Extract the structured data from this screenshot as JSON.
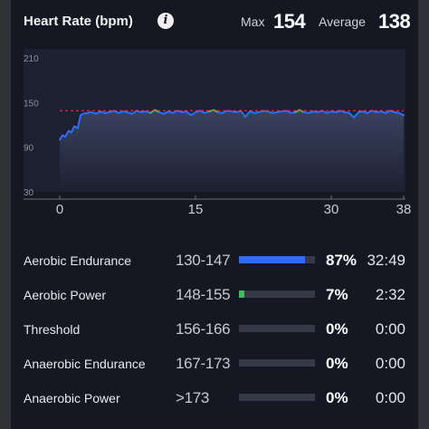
{
  "header": {
    "title": "Heart Rate (bpm)",
    "max_label": "Max",
    "max_value": "154",
    "avg_label": "Average",
    "avg_value": "138"
  },
  "chart_data": {
    "type": "line",
    "ylabel": "",
    "xlabel": "",
    "y_ticks": [
      210,
      150,
      90,
      30
    ],
    "x_ticks": [
      0,
      15,
      30,
      38
    ],
    "xlim": [
      0,
      38
    ],
    "ylim": [
      30,
      210
    ],
    "average_line": 138,
    "series": [
      {
        "color": "#2f6df6",
        "x": [
          0,
          0.3,
          0.6,
          1,
          1.3,
          1.6,
          2,
          2.3,
          2.6,
          3,
          3.5,
          4,
          4.5,
          5,
          5.5,
          6,
          6.5,
          7,
          7.5,
          8,
          8.5,
          9,
          9.5,
          10,
          10.5,
          11,
          11.5,
          12,
          12.5,
          13,
          13.5,
          14,
          14.5,
          15,
          15.5,
          16,
          16.5,
          17,
          17.5,
          18,
          18.5,
          19,
          19.5,
          20,
          20.5,
          21,
          21.5,
          22,
          22.5,
          23,
          23.5,
          24,
          24.5,
          25,
          25.5,
          26,
          26.5,
          27,
          27.5,
          28,
          28.5,
          29,
          29.5,
          30,
          30.5,
          31,
          31.5,
          32,
          32.5,
          33,
          33.5,
          34,
          34.5,
          35,
          35.5,
          36,
          36.5,
          37,
          37.5,
          38
        ],
        "values": [
          100,
          106,
          104,
          112,
          110,
          118,
          116,
          133,
          135,
          136,
          137,
          135,
          138,
          136,
          137,
          139,
          136,
          138,
          137,
          135,
          139,
          137,
          138,
          136,
          140,
          137,
          135,
          138,
          136,
          139,
          137,
          138,
          133,
          137,
          139,
          136,
          138,
          140,
          137,
          136,
          139,
          138,
          137,
          139,
          131,
          138,
          136,
          137,
          139,
          138,
          136,
          137,
          138,
          139,
          136,
          137,
          140,
          137,
          136,
          138,
          137,
          139,
          136,
          138,
          137,
          139,
          137,
          136,
          130,
          137,
          138,
          136,
          139,
          137,
          138,
          136,
          139,
          137,
          136,
          133
        ]
      },
      {
        "color": "#3fbf5a",
        "segments_above": 148
      }
    ]
  },
  "zones": [
    {
      "name": "Aerobic Endurance",
      "range": "130-147",
      "fraction": 0.87,
      "color": "#2f6df6",
      "pct": "87%",
      "time": "32:49"
    },
    {
      "name": "Aerobic Power",
      "range": "148-155",
      "fraction": 0.07,
      "color": "#3fbf5a",
      "pct": "7%",
      "time": "2:32"
    },
    {
      "name": "Threshold",
      "range": "156-166",
      "fraction": 0,
      "color": "#f0a030",
      "pct": "0%",
      "time": "0:00"
    },
    {
      "name": "Anaerobic Endurance",
      "range": "167-173",
      "fraction": 0,
      "color": "#f06030",
      "pct": "0%",
      "time": "0:00"
    },
    {
      "name": "Anaerobic Power",
      "range": ">173",
      "fraction": 0,
      "color": "#e03040",
      "pct": "0%",
      "time": "0:00"
    }
  ]
}
